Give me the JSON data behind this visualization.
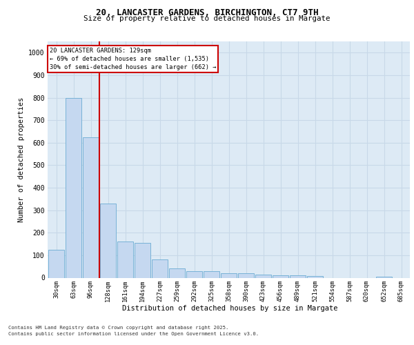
{
  "title1": "20, LANCASTER GARDENS, BIRCHINGTON, CT7 9TH",
  "title2": "Size of property relative to detached houses in Margate",
  "xlabel": "Distribution of detached houses by size in Margate",
  "ylabel": "Number of detached properties",
  "categories": [
    "30sqm",
    "63sqm",
    "96sqm",
    "128sqm",
    "161sqm",
    "194sqm",
    "227sqm",
    "259sqm",
    "292sqm",
    "325sqm",
    "358sqm",
    "390sqm",
    "423sqm",
    "456sqm",
    "489sqm",
    "521sqm",
    "554sqm",
    "587sqm",
    "620sqm",
    "652sqm",
    "685sqm"
  ],
  "values": [
    125,
    800,
    625,
    330,
    160,
    155,
    80,
    40,
    30,
    30,
    20,
    20,
    15,
    12,
    12,
    8,
    0,
    0,
    0,
    6,
    0
  ],
  "bar_color": "#c5d8f0",
  "bar_edge_color": "#6aabd2",
  "vline_index": 3,
  "vline_color": "#cc0000",
  "annotation_box_text": "20 LANCASTER GARDENS: 129sqm\n← 69% of detached houses are smaller (1,535)\n30% of semi-detached houses are larger (662) →",
  "annotation_box_color": "#cc0000",
  "ylim": [
    0,
    1050
  ],
  "yticks": [
    0,
    100,
    200,
    300,
    400,
    500,
    600,
    700,
    800,
    900,
    1000
  ],
  "footnote1": "Contains HM Land Registry data © Crown copyright and database right 2025.",
  "footnote2": "Contains public sector information licensed under the Open Government Licence v3.0.",
  "grid_color": "#c8d8e8",
  "plot_bg_color": "#ddeaf5"
}
